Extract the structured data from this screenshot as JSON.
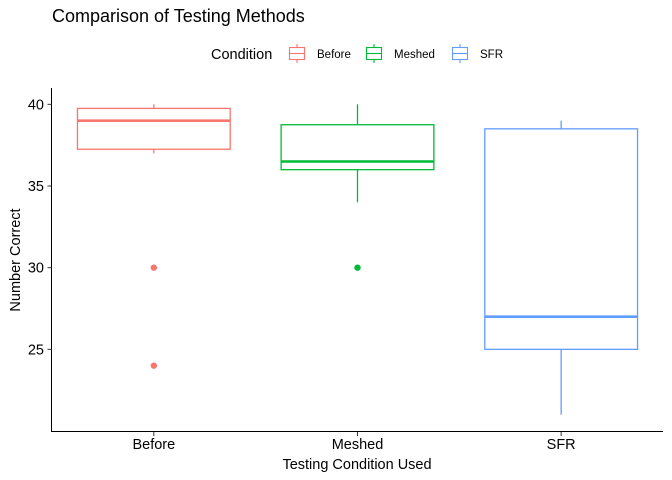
{
  "chart_data": {
    "type": "box",
    "title": "Comparison of Testing Methods",
    "xlabel": "Testing Condition Used",
    "ylabel": "Number Correct",
    "categories": [
      "Before",
      "Meshed",
      "SFR"
    ],
    "yticks": [
      25,
      30,
      35,
      40
    ],
    "ylim": [
      20.0,
      41.0
    ],
    "grid": false,
    "legend": {
      "title": "Condition",
      "position": "top",
      "entries": [
        "Before",
        "Meshed",
        "SFR"
      ]
    },
    "series": [
      {
        "name": "Before",
        "color": "#F8766D",
        "whisker_low": 37.0,
        "q1": 37.25,
        "median": 39.0,
        "q3": 39.75,
        "whisker_high": 40.0,
        "outliers": [
          30,
          24
        ]
      },
      {
        "name": "Meshed",
        "color": "#00BA38",
        "whisker_low": 34.0,
        "q1": 36.0,
        "median": 36.5,
        "q3": 38.75,
        "whisker_high": 40.0,
        "outliers": [
          30
        ]
      },
      {
        "name": "SFR",
        "color": "#619CFF",
        "whisker_low": 21.0,
        "q1": 25.0,
        "median": 27.0,
        "q3": 38.5,
        "whisker_high": 39.0,
        "outliers": []
      }
    ]
  }
}
